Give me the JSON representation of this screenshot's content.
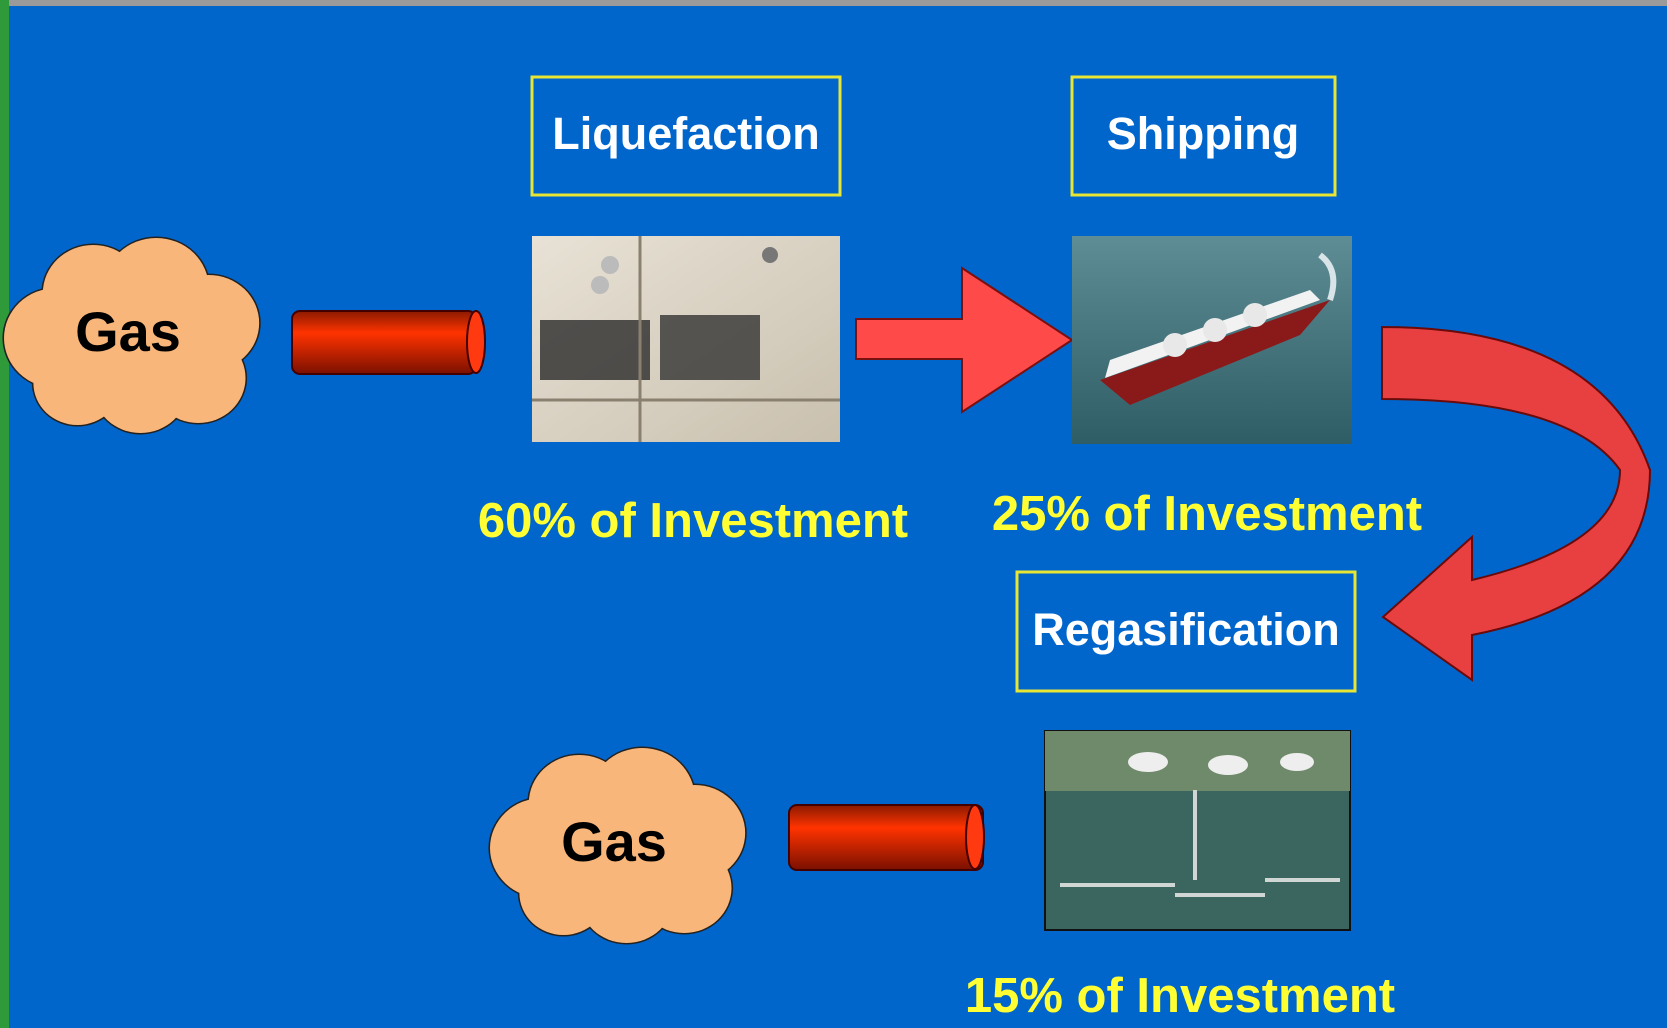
{
  "sources": [
    {
      "label": "Gas"
    },
    {
      "label": "Gas"
    }
  ],
  "stages": [
    {
      "label": "Liquefaction",
      "investment": "60% of Investment"
    },
    {
      "label": "Shipping",
      "investment": "25% of Investment"
    },
    {
      "label": "Regasification",
      "investment": "15% of Investment"
    }
  ]
}
